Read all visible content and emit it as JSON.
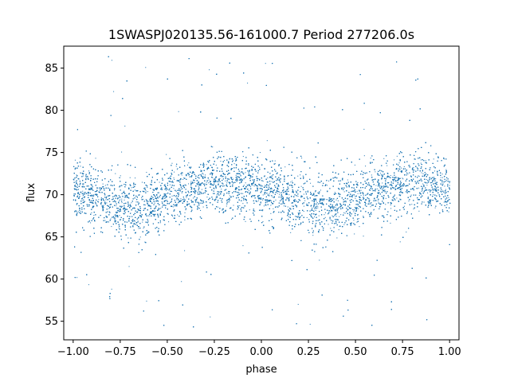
{
  "chart_data": {
    "type": "scatter",
    "title": "1SWASPJ020135.56-161000.7 Period 277206.0s",
    "xlabel": "phase",
    "ylabel": "flux",
    "xlim": [
      -1.05,
      1.05
    ],
    "ylim": [
      52.8,
      87.6
    ],
    "grid": false,
    "point_color": "#1f77b4",
    "x_ticks": [
      -1.0,
      -0.75,
      -0.5,
      -0.25,
      0.0,
      0.25,
      0.5,
      0.75,
      1.0
    ],
    "x_tick_labels": [
      "−1.00",
      "−0.75",
      "−0.50",
      "−0.25",
      "0.00",
      "0.25",
      "0.50",
      "0.75",
      "1.00"
    ],
    "y_ticks": [
      55,
      60,
      65,
      70,
      75,
      80,
      85
    ],
    "y_tick_labels": [
      "55",
      "60",
      "65",
      "70",
      "75",
      "80",
      "85"
    ],
    "profile": {
      "phase": [
        -1.0,
        -0.85,
        -0.65,
        -0.5,
        -0.25,
        -0.05,
        0.0,
        0.15,
        0.35,
        0.5,
        0.75,
        0.95,
        1.0
      ],
      "median_flux": [
        70.5,
        69.5,
        68.5,
        69.8,
        71.5,
        71.0,
        70.5,
        69.5,
        68.5,
        69.8,
        71.5,
        71.0,
        70.5
      ],
      "spread": [
        3.0,
        3.0,
        3.3,
        3.0,
        2.8,
        2.8,
        3.0,
        3.0,
        3.3,
        3.0,
        2.8,
        2.8,
        3.0
      ]
    }
  }
}
